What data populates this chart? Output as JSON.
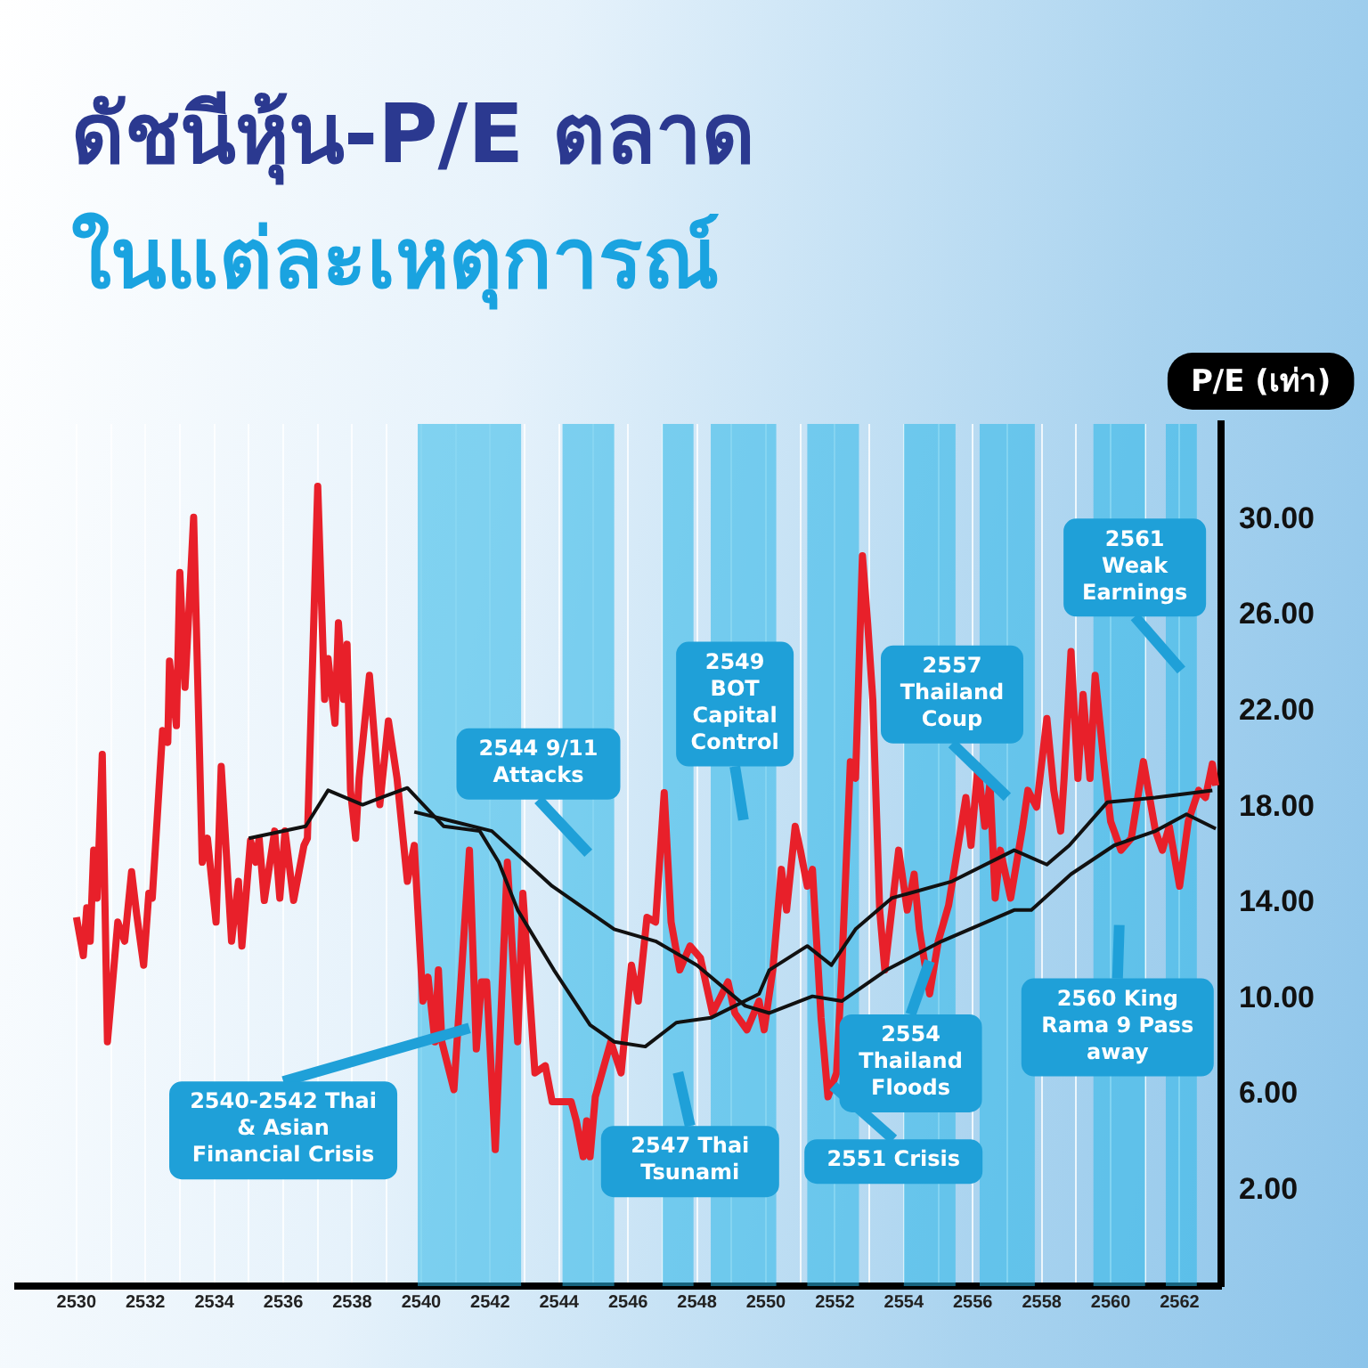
{
  "chart_data": {
    "type": "line",
    "title": "ดัชนีหุ้น-P/E ตลาด",
    "subtitle": "ในแต่ละเหตุการณ์",
    "ylabel": "P/E (เท่า)",
    "series": [
      {
        "color": "#e8202a",
        "x": [
          2530.0,
          2530.2,
          2530.3,
          2530.4,
          2530.5,
          2530.6,
          2530.75,
          2530.9,
          2531.2,
          2531.4,
          2531.6,
          2531.75,
          2531.95,
          2532.1,
          2532.2,
          2532.5,
          2532.65,
          2532.7,
          2532.9,
          2533.0,
          2533.15,
          2533.4,
          2533.65,
          2533.8,
          2534.05,
          2534.2,
          2534.5,
          2534.7,
          2534.8,
          2535.05,
          2535.2,
          2535.3,
          2535.45,
          2535.75,
          2535.9,
          2536.05,
          2536.3,
          2536.6,
          2536.7,
          2537.0,
          2537.2,
          2537.3,
          2537.5,
          2537.6,
          2537.75,
          2537.85,
          2537.95,
          2538.1,
          2538.2,
          2538.5,
          2538.8,
          2539.05,
          2539.3,
          2539.6,
          2539.8,
          2540.05,
          2540.2,
          2540.4,
          2540.5,
          2540.6,
          2540.95,
          2541.4,
          2541.6,
          2541.75,
          2541.9,
          2542.15,
          2542.5,
          2542.8,
          2542.95,
          2543.3,
          2543.6,
          2543.8,
          2544.35,
          2544.5,
          2544.7,
          2544.8,
          2544.9,
          2545.05,
          2545.5,
          2545.8,
          2546.1,
          2546.3,
          2546.55,
          2546.8,
          2547.05,
          2547.25,
          2547.5,
          2547.8,
          2548.1,
          2548.45,
          2548.9,
          2549.1,
          2549.45,
          2549.8,
          2549.95,
          2550.2,
          2550.45,
          2550.6,
          2550.85,
          2551.0,
          2551.2,
          2551.35,
          2551.6,
          2551.8,
          2552.05,
          2552.2,
          2552.45,
          2552.6,
          2552.8,
          2552.95,
          2553.1,
          2553.3,
          2553.45,
          2553.85,
          2554.1,
          2554.3,
          2554.45,
          2554.75,
          2555.0,
          2555.3,
          2555.8,
          2555.95,
          2556.15,
          2556.35,
          2556.5,
          2556.65,
          2556.8,
          2557.1,
          2557.45,
          2557.6,
          2557.85,
          2558.15,
          2558.35,
          2558.55,
          2558.65,
          2558.85,
          2559.05,
          2559.2,
          2559.4,
          2559.55,
          2559.8,
          2560.0,
          2560.3,
          2560.6,
          2560.95,
          2561.3,
          2561.5,
          2561.7,
          2562.0,
          2562.25,
          2562.55,
          2562.75,
          2562.95,
          2563.05
        ],
        "values": [
          13.4,
          11.8,
          13.8,
          12.4,
          16.2,
          14.2,
          20.2,
          8.2,
          13.2,
          12.4,
          15.3,
          13.5,
          11.4,
          14.4,
          14.2,
          21.2,
          20.7,
          24.1,
          21.4,
          27.8,
          23.0,
          30.1,
          15.7,
          16.7,
          13.2,
          19.7,
          12.4,
          14.9,
          12.2,
          16.6,
          15.7,
          16.7,
          14.1,
          17.0,
          14.2,
          17.0,
          14.1,
          16.4,
          16.7,
          31.4,
          22.5,
          24.2,
          21.5,
          25.7,
          22.5,
          24.8,
          18.7,
          16.7,
          19.2,
          23.5,
          18.1,
          21.6,
          19.2,
          14.9,
          16.4,
          9.9,
          10.9,
          8.2,
          11.2,
          8.2,
          6.2,
          16.2,
          7.9,
          10.7,
          10.7,
          3.7,
          15.7,
          8.2,
          14.4,
          6.9,
          7.2,
          5.7,
          5.7,
          4.9,
          3.4,
          4.9,
          3.4,
          5.9,
          8.2,
          6.9,
          11.4,
          9.9,
          13.4,
          13.2,
          18.6,
          13.2,
          11.2,
          12.2,
          11.7,
          9.4,
          10.7,
          9.4,
          8.7,
          9.9,
          8.7,
          11.2,
          15.4,
          13.7,
          17.2,
          16.2,
          14.7,
          15.4,
          9.2,
          5.9,
          6.9,
          11.2,
          19.9,
          19.2,
          28.5,
          25.7,
          22.5,
          13.7,
          11.2,
          16.2,
          13.7,
          15.2,
          12.9,
          10.2,
          12.4,
          13.9,
          18.4,
          16.4,
          19.7,
          17.2,
          19.0,
          14.2,
          16.2,
          14.2,
          17.2,
          18.7,
          18.0,
          21.7,
          18.7,
          17.0,
          19.2,
          24.5,
          19.2,
          22.7,
          19.2,
          23.5,
          19.9,
          17.4,
          16.2,
          16.7,
          19.9,
          17.0,
          16.2,
          17.2,
          14.7,
          17.4,
          18.7,
          18.4,
          19.8,
          18.9
        ]
      },
      {
        "color": "#111111",
        "x": [
          2535.0,
          2536.65,
          2537.3,
          2538.3,
          2538.85,
          2539.6,
          2540.65,
          2541.7,
          2542.25,
          2542.8,
          2543.85,
          2544.9,
          2545.6,
          2546.5,
          2547.4,
          2548.4,
          2549.8,
          2550.1,
          2551.2,
          2551.9,
          2552.6,
          2553.65,
          2555.4,
          2557.2,
          2558.15,
          2558.8,
          2559.9,
          2561.3,
          2562.95
        ],
        "values": [
          16.7,
          17.2,
          18.7,
          18.1,
          18.4,
          18.8,
          17.2,
          17.0,
          15.7,
          13.7,
          11.2,
          8.9,
          8.2,
          8.0,
          9.0,
          9.2,
          10.2,
          11.2,
          12.2,
          11.4,
          12.9,
          14.2,
          14.9,
          16.2,
          15.6,
          16.4,
          18.2,
          18.4,
          18.7
        ]
      },
      {
        "color": "#111111",
        "x": [
          2539.8,
          2542.05,
          2543.8,
          2545.6,
          2546.8,
          2548.0,
          2549.4,
          2550.1,
          2551.35,
          2552.2,
          2553.5,
          2555.1,
          2557.2,
          2557.7,
          2558.85,
          2560.1,
          2561.3,
          2562.2,
          2563.05
        ],
        "values": [
          17.8,
          17.0,
          14.7,
          12.9,
          12.4,
          11.4,
          9.7,
          9.4,
          10.1,
          9.9,
          11.2,
          12.4,
          13.7,
          13.7,
          15.2,
          16.4,
          17.0,
          17.7,
          17.1
        ]
      }
    ],
    "bands": [
      {
        "axis": "x",
        "from": 2539.9,
        "to": 2542.9,
        "label": "2540-2542 Thai & Asian Financial Crisis",
        "color": "#29b6e8"
      },
      {
        "axis": "x",
        "from": 2544.1,
        "to": 2545.6,
        "label": "2544 9/11 Attacks",
        "color": "#29b6e8"
      },
      {
        "axis": "x",
        "from": 2547.0,
        "to": 2547.9,
        "label": "2547 Thai Tsunami",
        "color": "#29b6e8"
      },
      {
        "axis": "x",
        "from": 2548.4,
        "to": 2550.3,
        "label": "2549 BOT Capital Control",
        "color": "#29b6e8"
      },
      {
        "axis": "x",
        "from": 2551.2,
        "to": 2552.7,
        "label": "2551 Crisis",
        "color": "#29b6e8"
      },
      {
        "axis": "x",
        "from": 2554.0,
        "to": 2555.5,
        "label": "2554 Thailand Floods",
        "color": "#29b6e8"
      },
      {
        "axis": "x",
        "from": 2556.2,
        "to": 2557.8,
        "label": "2557 Thailand Coup",
        "color": "#29b6e8"
      },
      {
        "axis": "x",
        "from": 2559.5,
        "to": 2561.0,
        "label": "2560 King Rama 9 Pass away",
        "color": "#29b6e8"
      },
      {
        "axis": "x",
        "from": 2561.6,
        "to": 2562.5,
        "label": "2561 Weak Earnings",
        "color": "#29b6e8"
      }
    ],
    "xlim": [
      2528.3,
      2563.2
    ],
    "xticks": [
      2530,
      {
        "value": 2531,
        "label": null
      },
      2532,
      {
        "value": 2533,
        "label": null
      },
      2534,
      {
        "value": 2535,
        "label": null
      },
      2536,
      {
        "value": 2537,
        "label": null
      },
      2538,
      {
        "value": 2539,
        "label": null
      },
      2540,
      {
        "value": 2541,
        "label": null
      },
      2542,
      {
        "value": 2543,
        "label": null
      },
      2544,
      {
        "value": 2545,
        "label": null
      },
      2546,
      {
        "value": 2547,
        "label": null
      },
      2548,
      {
        "value": 2549,
        "label": null
      },
      2550,
      {
        "value": 2551,
        "label": null
      },
      2552,
      {
        "value": 2553,
        "label": null
      },
      2554,
      {
        "value": 2555,
        "label": null
      },
      2556,
      {
        "value": 2557,
        "label": null
      },
      2558,
      {
        "value": 2559,
        "label": null
      },
      2560,
      {
        "value": 2561,
        "label": null
      },
      2562
    ],
    "ylim": [
      -2,
      34
    ],
    "yticks": [
      {
        "value": 2,
        "label": "2.00"
      },
      {
        "value": 6,
        "label": "6.00"
      },
      {
        "value": 10,
        "label": "10.00"
      },
      {
        "value": 14,
        "label": "14.00"
      },
      {
        "value": 18,
        "label": "18.00"
      },
      {
        "value": 22,
        "label": "22.00"
      },
      {
        "value": 26,
        "label": "26.00"
      },
      {
        "value": 30,
        "label": "30.00"
      }
    ],
    "grid": "x",
    "marker": "none",
    "line_style": "solid"
  }
}
